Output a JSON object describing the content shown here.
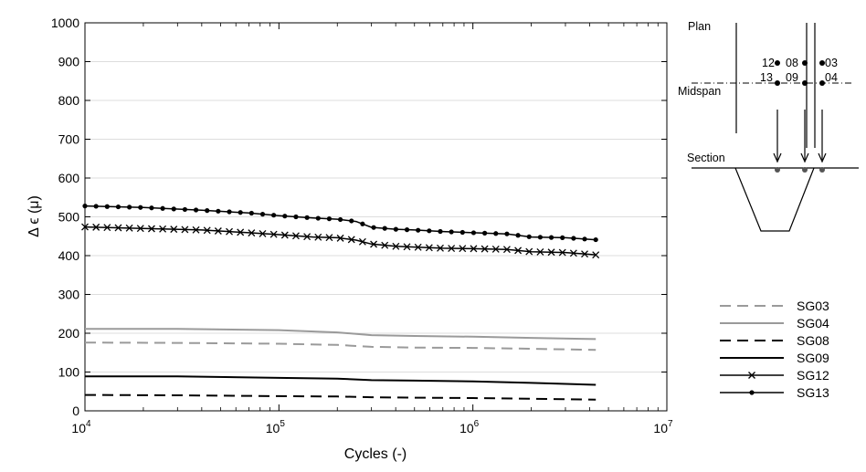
{
  "chart_data": {
    "type": "line",
    "xscale": "log",
    "xlim": [
      10000,
      10000000
    ],
    "ylim": [
      0,
      1000
    ],
    "yticks": [
      0,
      100,
      200,
      300,
      400,
      500,
      600,
      700,
      800,
      900,
      1000
    ],
    "xticks": [
      {
        "value": 10000,
        "base": "10",
        "exp": "4"
      },
      {
        "value": 100000,
        "base": "10",
        "exp": "5"
      },
      {
        "value": 1000000,
        "base": "10",
        "exp": "6"
      },
      {
        "value": 10000000,
        "base": "10",
        "exp": "7"
      }
    ],
    "xlabel": "Cycles (-)",
    "ylabel": "Δ ϵ (μ)",
    "grid": "horizontal",
    "legend_position": "bottom-right",
    "series": [
      {
        "name": "SG03",
        "style": "dashed",
        "color": "#9a9a9a",
        "marker": "none",
        "x": [
          10000,
          30000,
          100000,
          200000,
          300000,
          500000,
          1000000,
          2000000,
          4300000
        ],
        "y": [
          176,
          175,
          173,
          170,
          165,
          163,
          162,
          160,
          157
        ]
      },
      {
        "name": "SG04",
        "style": "solid",
        "color": "#9a9a9a",
        "marker": "none",
        "x": [
          10000,
          30000,
          100000,
          200000,
          300000,
          500000,
          1000000,
          2000000,
          4300000
        ],
        "y": [
          211,
          211,
          208,
          202,
          195,
          193,
          191,
          188,
          185
        ]
      },
      {
        "name": "SG08",
        "style": "dashed",
        "color": "#000000",
        "marker": "none",
        "x": [
          10000,
          30000,
          100000,
          200000,
          300000,
          500000,
          1000000,
          2000000,
          4300000
        ],
        "y": [
          41,
          40,
          38,
          37,
          35,
          34,
          33,
          31,
          29
        ]
      },
      {
        "name": "SG09",
        "style": "solid",
        "color": "#000000",
        "marker": "none",
        "x": [
          10000,
          30000,
          100000,
          200000,
          300000,
          500000,
          1000000,
          2000000,
          4300000
        ],
        "y": [
          89,
          89,
          85,
          83,
          79,
          78,
          76,
          72,
          67
        ]
      },
      {
        "name": "SG12",
        "style": "solid",
        "color": "#000000",
        "marker": "x",
        "x": [
          10000,
          20000,
          40000,
          70000,
          100000,
          150000,
          200000,
          250000,
          300000,
          400000,
          500000,
          700000,
          1000000,
          1500000,
          2000000,
          3000000,
          4300000
        ],
        "y": [
          474,
          470,
          466,
          459,
          454,
          448,
          446,
          440,
          430,
          424,
          422,
          419,
          418,
          416,
          410,
          408,
          402
        ]
      },
      {
        "name": "SG13",
        "style": "solid",
        "color": "#000000",
        "marker": "dot",
        "x": [
          10000,
          20000,
          40000,
          70000,
          100000,
          150000,
          200000,
          250000,
          300000,
          400000,
          500000,
          700000,
          1000000,
          1500000,
          2000000,
          3000000,
          4300000
        ],
        "y": [
          528,
          524,
          517,
          510,
          503,
          497,
          494,
          488,
          473,
          468,
          466,
          462,
          459,
          456,
          448,
          446,
          441
        ]
      }
    ]
  },
  "sketch": {
    "plan_label": "Plan",
    "midspan_label": "Midspan",
    "section_label": "Section",
    "gauge_labels_top": [
      "12",
      "08",
      "03"
    ],
    "gauge_labels_mid": [
      "13",
      "09",
      "04"
    ]
  }
}
